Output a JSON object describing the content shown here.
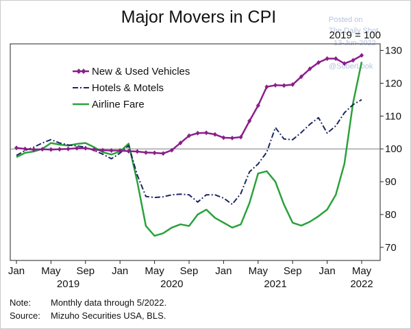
{
  "chart_data": {
    "type": "line",
    "title": "Major Movers in CPI",
    "base_label": "2019 = 100",
    "ylim": [
      66,
      132
    ],
    "y_ticks": [
      70,
      80,
      90,
      100,
      110,
      120,
      130
    ],
    "y_tick_labels": [
      "70",
      "80",
      "90",
      "100",
      "110",
      "120",
      "130"
    ],
    "x_start": "Jan 2019",
    "x_end": "May 2022",
    "x_ticks": [
      0,
      4,
      8,
      12,
      16,
      20,
      24,
      28,
      32,
      36,
      40
    ],
    "x_tick_labels": [
      "Jan",
      "May",
      "Sep",
      "Jan",
      "May",
      "Sep",
      "Jan",
      "May",
      "Sep",
      "Jan",
      "May"
    ],
    "year_labels": [
      {
        "text": "2019",
        "at": 6
      },
      {
        "text": "2020",
        "at": 18
      },
      {
        "text": "2021",
        "at": 30
      },
      {
        "text": "2022",
        "at": 40
      }
    ],
    "reference_line": 100,
    "legend_position": "top-left",
    "series": [
      {
        "name": "New & Used Vehicles",
        "color": "#8a1e8a",
        "style": "solid-markers",
        "values": [
          100.3,
          100.0,
          99.8,
          99.9,
          99.8,
          99.9,
          100.0,
          100.2,
          100.2,
          99.8,
          99.6,
          99.5,
          99.5,
          99.3,
          99.2,
          98.9,
          98.8,
          98.6,
          99.6,
          101.8,
          104.0,
          104.8,
          104.9,
          104.4,
          103.4,
          103.3,
          103.6,
          108.5,
          113.2,
          118.9,
          119.4,
          119.3,
          119.6,
          122.0,
          124.4,
          126.3,
          127.5,
          127.5,
          126.0,
          127.0,
          128.5
        ]
      },
      {
        "name": "Hotels & Motels",
        "color": "#1a2660",
        "style": "dash-dot",
        "values": [
          98.0,
          99.5,
          100.5,
          101.8,
          102.8,
          101.8,
          101.2,
          100.9,
          100.5,
          99.5,
          98.4,
          97.0,
          98.7,
          101.0,
          92.0,
          85.5,
          85.2,
          85.4,
          86.0,
          86.2,
          86.0,
          83.8,
          86.0,
          86.0,
          85.0,
          83.1,
          86.4,
          93.0,
          95.4,
          99.0,
          106.5,
          103.0,
          102.8,
          105.0,
          107.5,
          109.5,
          104.8,
          107.0,
          111.0,
          113.5,
          115.0
        ]
      },
      {
        "name": "Airline Fare",
        "color": "#2aa13a",
        "style": "solid",
        "values": [
          97.5,
          98.8,
          99.2,
          100.0,
          101.8,
          101.3,
          101.0,
          101.5,
          101.8,
          100.5,
          99.0,
          98.3,
          99.2,
          101.6,
          90.0,
          76.5,
          73.5,
          74.3,
          76.0,
          77.0,
          76.5,
          80.0,
          81.5,
          79.0,
          77.5,
          76.0,
          77.0,
          83.5,
          92.5,
          93.2,
          90.0,
          83.0,
          77.5,
          76.6,
          77.8,
          79.5,
          81.5,
          86.0,
          95.5,
          114.0,
          126.5
        ]
      }
    ]
  },
  "watermark": {
    "line1": "Posted on",
    "line2": "The Daily Shot",
    "line3": "13-Jun-2022",
    "line4": "@SoberLook"
  },
  "footnote": {
    "note_label": "Note:",
    "note_text": "Monthly data through 5/2022.",
    "source_label": "Source:",
    "source_text": "Mizuho Securities USA, BLS."
  }
}
